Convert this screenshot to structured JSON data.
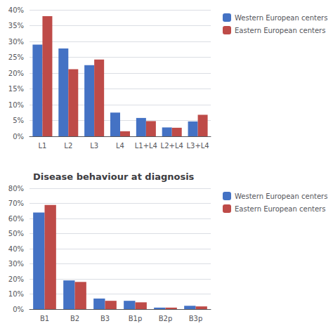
{
  "chart_data": [
    {
      "type": "bar",
      "categories": [
        "L1",
        "L2",
        "L3",
        "L4",
        "L1+L4",
        "L2+L4",
        "L3+L4"
      ],
      "series": [
        {
          "name": "Western European centers",
          "color": "#4472C4",
          "values": [
            0.29,
            0.278,
            0.225,
            0.075,
            0.058,
            0.028,
            0.047
          ]
        },
        {
          "name": "Eastern European centers",
          "color": "#BE4B48",
          "values": [
            0.38,
            0.212,
            0.243,
            0.016,
            0.048,
            0.027,
            0.068
          ]
        }
      ],
      "ylim": [
        0,
        0.4
      ],
      "yticks": [
        {
          "value": 0.0,
          "label": "0%"
        },
        {
          "value": 0.05,
          "label": "5%"
        },
        {
          "value": 0.1,
          "label": "10%"
        },
        {
          "value": 0.15,
          "label": "15%"
        },
        {
          "value": 0.2,
          "label": "20%"
        },
        {
          "value": 0.25,
          "label": "25%"
        },
        {
          "value": 0.3,
          "label": "30%"
        },
        {
          "value": 0.35,
          "label": "35%"
        },
        {
          "value": 0.4,
          "label": "40%"
        }
      ],
      "grid": true,
      "legend": "right"
    },
    {
      "type": "bar",
      "title": "Disease behaviour at diagnosis",
      "categories": [
        "B1",
        "B2",
        "B3",
        "B1p",
        "B2p",
        "B3p"
      ],
      "series": [
        {
          "name": "Western European centers",
          "color": "#4472C4",
          "values": [
            0.64,
            0.19,
            0.07,
            0.055,
            0.01,
            0.022
          ]
        },
        {
          "name": "Eastern European centers",
          "color": "#BE4B48",
          "values": [
            0.69,
            0.18,
            0.055,
            0.045,
            0.01,
            0.018
          ]
        }
      ],
      "ylim": [
        0,
        0.8
      ],
      "yticks": [
        {
          "value": 0.0,
          "label": "0%"
        },
        {
          "value": 0.1,
          "label": "10%"
        },
        {
          "value": 0.2,
          "label": "20%"
        },
        {
          "value": 0.3,
          "label": "30%"
        },
        {
          "value": 0.4,
          "label": "40%"
        },
        {
          "value": 0.5,
          "label": "50%"
        },
        {
          "value": 0.6,
          "label": "60%"
        },
        {
          "value": 0.7,
          "label": "70%"
        },
        {
          "value": 0.8,
          "label": "80%"
        }
      ],
      "grid": true,
      "legend": "right"
    }
  ]
}
